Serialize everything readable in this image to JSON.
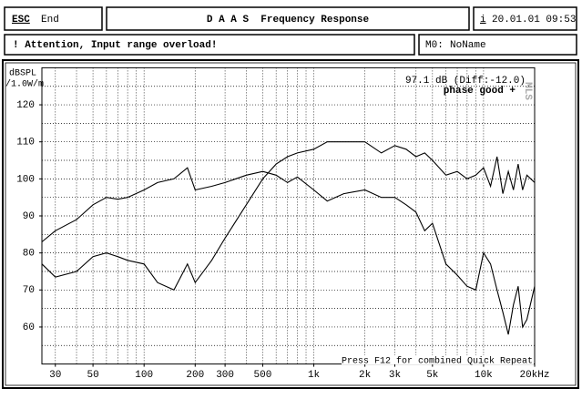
{
  "header": {
    "esc_key": "ESC",
    "esc_label": "End",
    "title": "D A A S  Frequency Response",
    "info_key": "i",
    "datetime": "20.01.01 09:53"
  },
  "status": {
    "message": "! Attention, Input range overload!",
    "memory_key": "M0:",
    "memory_name": "NoName"
  },
  "chart_data": {
    "type": "line",
    "y_label": "dBSPL",
    "y_unit": "/1.0W/m",
    "x_scale": "log",
    "annotations": [
      "97.1 dB (Diff:-12.0)",
      "phase good +",
      "MLS",
      "Press F12 for combined Quick Repeat"
    ],
    "xlim": [
      25,
      20000
    ],
    "ylim": [
      50,
      130
    ],
    "xticks": [
      30,
      50,
      100,
      200,
      300,
      500,
      {
        "value": 1000,
        "label": "1k"
      },
      {
        "value": 2000,
        "label": "2k"
      },
      {
        "value": 3000,
        "label": "3k"
      },
      {
        "value": 5000,
        "label": "5k"
      },
      {
        "value": 10000,
        "label": "10k"
      },
      {
        "value": 20000,
        "label": "20kHz"
      }
    ],
    "yticks": [
      60,
      70,
      80,
      90,
      100,
      110,
      120
    ],
    "xgrid": [
      30,
      40,
      50,
      60,
      70,
      80,
      90,
      100,
      200,
      300,
      400,
      500,
      600,
      700,
      800,
      900,
      1000,
      2000,
      3000,
      4000,
      5000,
      6000,
      7000,
      8000,
      9000,
      10000,
      20000
    ],
    "ygrid": [
      55,
      60,
      65,
      70,
      75,
      80,
      85,
      90,
      95,
      100,
      105,
      110,
      115,
      120,
      125
    ],
    "x": [
      25,
      30,
      40,
      50,
      60,
      70,
      80,
      100,
      120,
      150,
      180,
      200,
      250,
      300,
      400,
      500,
      600,
      700,
      800,
      1000,
      1200,
      1500,
      2000,
      2500,
      3000,
      3500,
      4000,
      4500,
      5000,
      6000,
      7000,
      8000,
      9000,
      10000,
      11000,
      12000,
      13000,
      14000,
      15000,
      16000,
      17000,
      18000,
      20000
    ],
    "series": [
      {
        "color": "#000000",
        "values": [
          83,
          86,
          89,
          93,
          95,
          94.5,
          95,
          97,
          99,
          100,
          103,
          97,
          98,
          99,
          101,
          102,
          101,
          99,
          100.5,
          97,
          94,
          96,
          97,
          95,
          95,
          93,
          91,
          86,
          88,
          77,
          74,
          71,
          70,
          80,
          77,
          70,
          64,
          58,
          66,
          71,
          60,
          62,
          71
        ]
      },
      {
        "color": "#000000",
        "values": [
          77,
          73.5,
          75,
          79,
          80,
          79,
          78,
          77,
          72,
          70,
          77,
          72,
          78,
          84,
          93,
          100,
          104,
          106,
          107,
          108,
          110,
          110,
          110,
          107,
          109,
          108,
          106,
          107,
          105,
          101,
          102,
          100,
          101,
          103,
          98,
          106,
          96,
          102,
          97,
          104,
          97,
          101,
          99
        ]
      }
    ]
  }
}
